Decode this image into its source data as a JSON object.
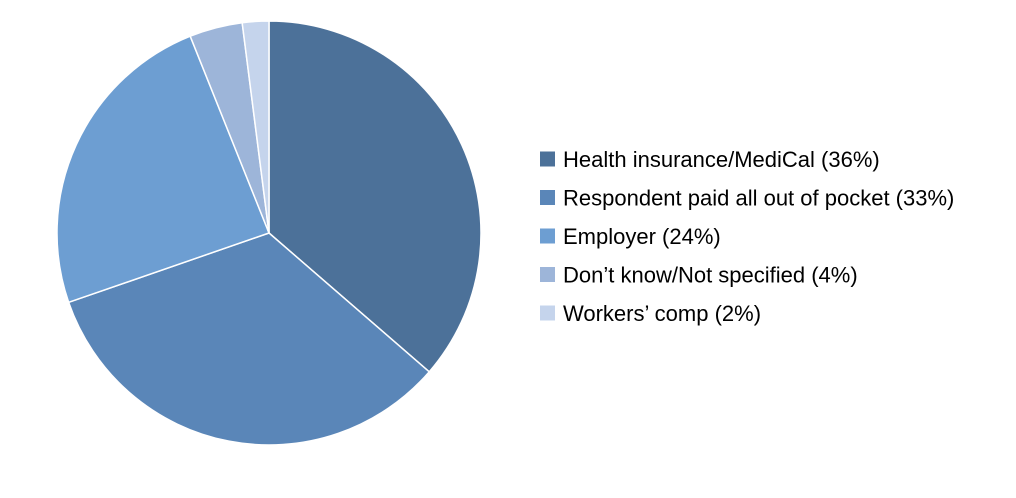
{
  "chart_data": {
    "type": "pie",
    "title": "",
    "legend_position": "right",
    "slices": [
      {
        "label": "Health insurance/MediCal (36%)",
        "value": 36,
        "color": "#4c7199"
      },
      {
        "label": "Respondent paid all out of pocket (33%)",
        "value": 33,
        "color": "#5a86b8"
      },
      {
        "label": "Employer (24%)",
        "value": 24,
        "color": "#6d9ed2"
      },
      {
        "label": "Don’t know/Not specified (4%)",
        "value": 4,
        "color": "#9db5d9"
      },
      {
        "label": "Workers’ comp (2%)",
        "value": 2,
        "color": "#c5d4ec"
      }
    ]
  }
}
